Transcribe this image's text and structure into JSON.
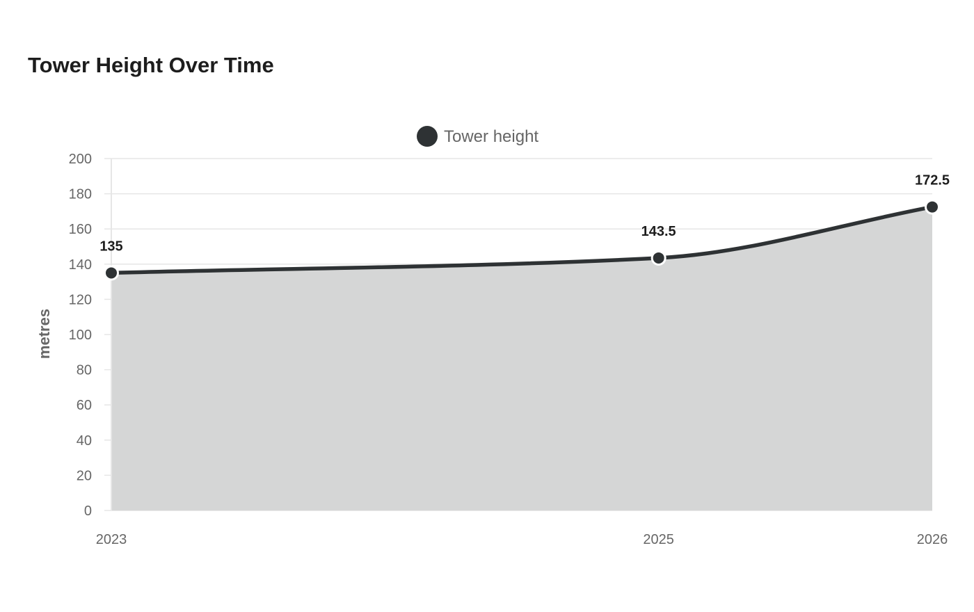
{
  "chart_data": {
    "type": "area",
    "title": "Tower Height Over Time",
    "xlabel": "",
    "ylabel": "metres",
    "categories": [
      "2023",
      "2025",
      "2026"
    ],
    "series": [
      {
        "name": "Tower height",
        "values": [
          135,
          143.5,
          172.5
        ]
      }
    ],
    "data_labels": [
      "135",
      "143.5",
      "172.5"
    ],
    "ylim": [
      0,
      200
    ],
    "yticks": [
      0,
      20,
      40,
      60,
      80,
      100,
      120,
      140,
      160,
      180,
      200
    ],
    "grid": true,
    "legend_position": "top-center",
    "colors": {
      "line": "#2e3234",
      "fill": "#d5d6d6",
      "grid": "#e6e6e6",
      "text": "#666666",
      "label": "#1d1d1d"
    }
  }
}
